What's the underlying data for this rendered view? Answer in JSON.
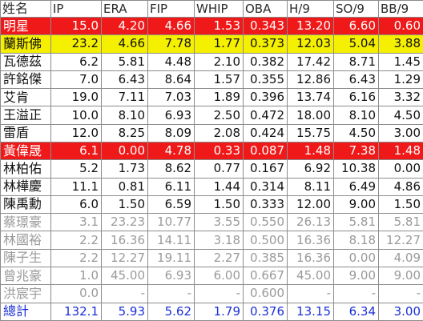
{
  "headers": [
    "姓名",
    "IP",
    "ERA",
    "FIP",
    "WHIP",
    "OBA",
    "H/9",
    "SO/9",
    "BB/9"
  ],
  "rows": [
    {
      "name": "明星",
      "ip": "15.0",
      "era": "4.20",
      "fip": "4.66",
      "whip": "1.53",
      "oba": "0.343",
      "h9": "13.20",
      "so9": "6.60",
      "bb9": "0.60",
      "highlight": "red"
    },
    {
      "name": "蘭斯佛",
      "ip": "23.2",
      "era": "4.66",
      "fip": "7.78",
      "whip": "1.77",
      "oba": "0.373",
      "h9": "12.03",
      "so9": "5.04",
      "bb9": "3.88",
      "highlight": "yellow"
    },
    {
      "name": "瓦德茲",
      "ip": "6.2",
      "era": "5.81",
      "fip": "4.48",
      "whip": "2.10",
      "oba": "0.382",
      "h9": "17.42",
      "so9": "8.71",
      "bb9": "1.45",
      "highlight": "none"
    },
    {
      "name": "許銘傑",
      "ip": "7.0",
      "era": "6.43",
      "fip": "8.64",
      "whip": "1.57",
      "oba": "0.355",
      "h9": "12.86",
      "so9": "6.43",
      "bb9": "1.29",
      "highlight": "none"
    },
    {
      "name": "艾肯",
      "ip": "19.0",
      "era": "7.11",
      "fip": "7.03",
      "whip": "1.89",
      "oba": "0.396",
      "h9": "13.74",
      "so9": "6.16",
      "bb9": "3.32",
      "highlight": "none"
    },
    {
      "name": "王溢正",
      "ip": "10.0",
      "era": "8.10",
      "fip": "6.93",
      "whip": "2.50",
      "oba": "0.472",
      "h9": "18.00",
      "so9": "8.10",
      "bb9": "4.50",
      "highlight": "none"
    },
    {
      "name": "雷盾",
      "ip": "12.0",
      "era": "8.25",
      "fip": "8.09",
      "whip": "2.08",
      "oba": "0.424",
      "h9": "15.75",
      "so9": "4.50",
      "bb9": "3.00",
      "highlight": "none"
    },
    {
      "name": "黃偉晟",
      "ip": "6.1",
      "era": "0.00",
      "fip": "4.78",
      "whip": "0.33",
      "oba": "0.087",
      "h9": "1.48",
      "so9": "7.38",
      "bb9": "1.48",
      "highlight": "red"
    },
    {
      "name": "林柏佑",
      "ip": "5.2",
      "era": "1.73",
      "fip": "8.62",
      "whip": "0.77",
      "oba": "0.167",
      "h9": "6.92",
      "so9": "10.38",
      "bb9": "0.00",
      "highlight": "none"
    },
    {
      "name": "林樺慶",
      "ip": "11.1",
      "era": "0.81",
      "fip": "6.11",
      "whip": "1.44",
      "oba": "0.314",
      "h9": "8.11",
      "so9": "6.49",
      "bb9": "4.86",
      "highlight": "none"
    },
    {
      "name": "陳禹勳",
      "ip": "6.0",
      "era": "1.50",
      "fip": "6.59",
      "whip": "1.50",
      "oba": "0.333",
      "h9": "12.00",
      "so9": "9.00",
      "bb9": "1.50",
      "highlight": "none"
    },
    {
      "name": "蔡璟豪",
      "ip": "3.1",
      "era": "23.23",
      "fip": "10.77",
      "whip": "3.55",
      "oba": "0.550",
      "h9": "26.13",
      "so9": "5.81",
      "bb9": "5.81",
      "highlight": "gray"
    },
    {
      "name": "林國裕",
      "ip": "2.2",
      "era": "16.36",
      "fip": "14.11",
      "whip": "3.18",
      "oba": "0.500",
      "h9": "16.36",
      "so9": "8.18",
      "bb9": "12.27",
      "highlight": "gray"
    },
    {
      "name": "陳子生",
      "ip": "2.2",
      "era": "12.27",
      "fip": "19.11",
      "whip": "2.27",
      "oba": "0.385",
      "h9": "16.36",
      "so9": "0.00",
      "bb9": "4.09",
      "highlight": "gray"
    },
    {
      "name": "曾兆豪",
      "ip": "1.0",
      "era": "45.00",
      "fip": "6.93",
      "whip": "6.00",
      "oba": "0.667",
      "h9": "45.00",
      "so9": "9.00",
      "bb9": "9.00",
      "highlight": "gray"
    },
    {
      "name": "洪宸宇",
      "ip": "0.0",
      "era": "-",
      "fip": "-",
      "whip": "-",
      "oba": "0.600",
      "h9": "-",
      "so9": "-",
      "bb9": "-",
      "highlight": "gray"
    }
  ],
  "total": {
    "name": "總計",
    "ip": "132.1",
    "era": "5.93",
    "fip": "5.62",
    "whip": "1.79",
    "oba": "0.376",
    "h9": "13.15",
    "so9": "6.34",
    "bb9": "3.00"
  },
  "colors": {
    "red": "#f01919",
    "yellow": "#f5ef00",
    "total_text": "#1a2fd6",
    "gray_text": "#9a9a9a",
    "header_bg": "#c9c9c9"
  }
}
